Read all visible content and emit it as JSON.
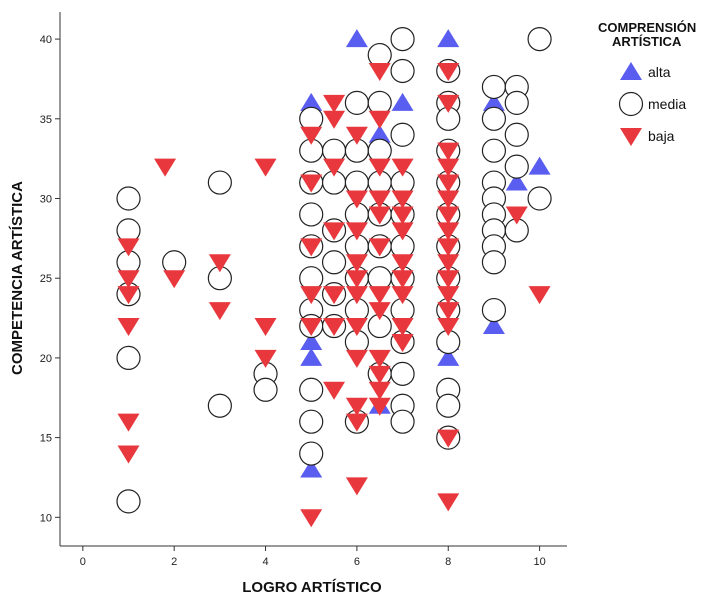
{
  "chart_data": {
    "type": "scatter",
    "xlabel": "LOGRO ARTÍSTICO",
    "ylabel": "COMPETENCIA ARTÍSTICA",
    "xlim": [
      -0.5,
      10.6
    ],
    "ylim": [
      8.2,
      41.7
    ],
    "x_ticks": [
      0,
      2,
      4,
      6,
      8,
      10
    ],
    "y_ticks": [
      10,
      15,
      20,
      25,
      30,
      35,
      40
    ],
    "legend": {
      "title_lines": [
        "COMPRENSIÓN",
        "ARTÍSTICA"
      ],
      "placement": "top-right"
    },
    "series": [
      {
        "name": "alta",
        "marker": "triangle-up",
        "color": "#5a5ef0",
        "points": [
          [
            5,
            36
          ],
          [
            5,
            21
          ],
          [
            5,
            20
          ],
          [
            5,
            13
          ],
          [
            6,
            40
          ],
          [
            6.5,
            34
          ],
          [
            6.5,
            17
          ],
          [
            7,
            36
          ],
          [
            8,
            40
          ],
          [
            8,
            21
          ],
          [
            8,
            20
          ],
          [
            9,
            36
          ],
          [
            9,
            22
          ],
          [
            9.5,
            31
          ],
          [
            10,
            32
          ]
        ]
      },
      {
        "name": "media",
        "marker": "circle",
        "color": "#ffffff",
        "points": [
          [
            1,
            30
          ],
          [
            1,
            28
          ],
          [
            1,
            26
          ],
          [
            1,
            24
          ],
          [
            1,
            20
          ],
          [
            1,
            11
          ],
          [
            2,
            26
          ],
          [
            3,
            31
          ],
          [
            3,
            25
          ],
          [
            3,
            17
          ],
          [
            4,
            19
          ],
          [
            4,
            18
          ],
          [
            5,
            35
          ],
          [
            5,
            33
          ],
          [
            5,
            31
          ],
          [
            5,
            29
          ],
          [
            5,
            27
          ],
          [
            5,
            25
          ],
          [
            5,
            23
          ],
          [
            5,
            22
          ],
          [
            5,
            18
          ],
          [
            5,
            16
          ],
          [
            5,
            14
          ],
          [
            5.5,
            33
          ],
          [
            5.5,
            31
          ],
          [
            5.5,
            28
          ],
          [
            5.5,
            26
          ],
          [
            5.5,
            24
          ],
          [
            5.5,
            22
          ],
          [
            6,
            36
          ],
          [
            6,
            33
          ],
          [
            6,
            31
          ],
          [
            6,
            29
          ],
          [
            6,
            27
          ],
          [
            6,
            25
          ],
          [
            6,
            23
          ],
          [
            6,
            21
          ],
          [
            6,
            16
          ],
          [
            6.5,
            39
          ],
          [
            6.5,
            36
          ],
          [
            6.5,
            33
          ],
          [
            6.5,
            31
          ],
          [
            6.5,
            29
          ],
          [
            6.5,
            27
          ],
          [
            6.5,
            25
          ],
          [
            6.5,
            22
          ],
          [
            6.5,
            19
          ],
          [
            7,
            40
          ],
          [
            7,
            38
          ],
          [
            7,
            34
          ],
          [
            7,
            31
          ],
          [
            7,
            29
          ],
          [
            7,
            27
          ],
          [
            7,
            25
          ],
          [
            7,
            23
          ],
          [
            7,
            21
          ],
          [
            7,
            19
          ],
          [
            7,
            17
          ],
          [
            7,
            16
          ],
          [
            8,
            38
          ],
          [
            8,
            36
          ],
          [
            8,
            35
          ],
          [
            8,
            33
          ],
          [
            8,
            31
          ],
          [
            8,
            29
          ],
          [
            8,
            27
          ],
          [
            8,
            25
          ],
          [
            8,
            23
          ],
          [
            8,
            21
          ],
          [
            8,
            18
          ],
          [
            8,
            17
          ],
          [
            8,
            15
          ],
          [
            9,
            37
          ],
          [
            9,
            35
          ],
          [
            9,
            33
          ],
          [
            9,
            31
          ],
          [
            9,
            30
          ],
          [
            9,
            29
          ],
          [
            9,
            28
          ],
          [
            9,
            27
          ],
          [
            9,
            26
          ],
          [
            9,
            23
          ],
          [
            9.5,
            37
          ],
          [
            9.5,
            36
          ],
          [
            9.5,
            34
          ],
          [
            9.5,
            32
          ],
          [
            9.5,
            28
          ],
          [
            10,
            40
          ],
          [
            10,
            30
          ]
        ]
      },
      {
        "name": "baja",
        "marker": "triangle-down",
        "color": "#e8383d",
        "points": [
          [
            1,
            27
          ],
          [
            1,
            25
          ],
          [
            1,
            24
          ],
          [
            1,
            22
          ],
          [
            1,
            16
          ],
          [
            1,
            14
          ],
          [
            1.8,
            32
          ],
          [
            2,
            25
          ],
          [
            3,
            26
          ],
          [
            3,
            23
          ],
          [
            4,
            32
          ],
          [
            4,
            22
          ],
          [
            4,
            20
          ],
          [
            5,
            34
          ],
          [
            5,
            31
          ],
          [
            5,
            27
          ],
          [
            5,
            24
          ],
          [
            5,
            22
          ],
          [
            5,
            10
          ],
          [
            5.5,
            36
          ],
          [
            5.5,
            35
          ],
          [
            5.5,
            32
          ],
          [
            5.5,
            28
          ],
          [
            5.5,
            24
          ],
          [
            5.5,
            22
          ],
          [
            5.5,
            18
          ],
          [
            6,
            34
          ],
          [
            6,
            30
          ],
          [
            6,
            28
          ],
          [
            6,
            26
          ],
          [
            6,
            25
          ],
          [
            6,
            24
          ],
          [
            6,
            22
          ],
          [
            6,
            20
          ],
          [
            6,
            17
          ],
          [
            6,
            16
          ],
          [
            6,
            12
          ],
          [
            6.5,
            38
          ],
          [
            6.5,
            35
          ],
          [
            6.5,
            32
          ],
          [
            6.5,
            30
          ],
          [
            6.5,
            29
          ],
          [
            6.5,
            27
          ],
          [
            6.5,
            24
          ],
          [
            6.5,
            23
          ],
          [
            6.5,
            20
          ],
          [
            6.5,
            19
          ],
          [
            6.5,
            18
          ],
          [
            6.5,
            17
          ],
          [
            7,
            32
          ],
          [
            7,
            30
          ],
          [
            7,
            29
          ],
          [
            7,
            28
          ],
          [
            7,
            26
          ],
          [
            7,
            25
          ],
          [
            7,
            24
          ],
          [
            7,
            22
          ],
          [
            7,
            21
          ],
          [
            8,
            38
          ],
          [
            8,
            36
          ],
          [
            8,
            33
          ],
          [
            8,
            32
          ],
          [
            8,
            31
          ],
          [
            8,
            30
          ],
          [
            8,
            29
          ],
          [
            8,
            28
          ],
          [
            8,
            27
          ],
          [
            8,
            26
          ],
          [
            8,
            25
          ],
          [
            8,
            24
          ],
          [
            8,
            23
          ],
          [
            8,
            22
          ],
          [
            8,
            15
          ],
          [
            8,
            11
          ],
          [
            9.5,
            29
          ],
          [
            10,
            24
          ]
        ]
      }
    ]
  }
}
